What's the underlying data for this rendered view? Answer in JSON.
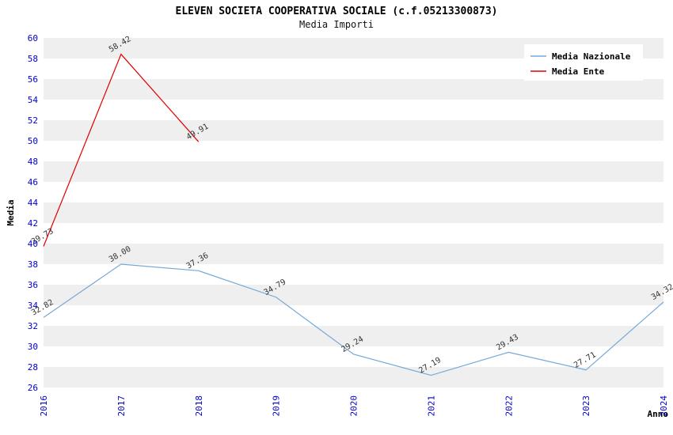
{
  "chart_data": {
    "type": "line",
    "title": "ELEVEN SOCIETA COOPERATIVA SOCIALE (c.f.05213300873)",
    "subtitle": "Media Importi",
    "xlabel": "Anno",
    "ylabel": "Media",
    "ylim": [
      26,
      60
    ],
    "ytick_step": 2,
    "categories": [
      "2016",
      "2017",
      "2018",
      "2019",
      "2020",
      "2021",
      "2022",
      "2023",
      "2024"
    ],
    "series": [
      {
        "name": "Media Nazionale",
        "color": "#74a9d8",
        "values": [
          32.82,
          38.0,
          37.36,
          34.79,
          29.24,
          27.19,
          29.43,
          27.71,
          34.32
        ]
      },
      {
        "name": "Media Ente",
        "color": "#e00000",
        "values": [
          39.73,
          58.42,
          49.91,
          null,
          null,
          null,
          null,
          null,
          null
        ]
      }
    ],
    "legend": {
      "position": "top-right",
      "entries": [
        "Media Nazionale",
        "Media Ente"
      ]
    },
    "grid": "horizontal-bands",
    "colors": {
      "band": "#efefef",
      "band_alt": "#ffffff",
      "tick_label": "#0000cc",
      "data_label": "#333333",
      "background": "#ffffff"
    }
  }
}
